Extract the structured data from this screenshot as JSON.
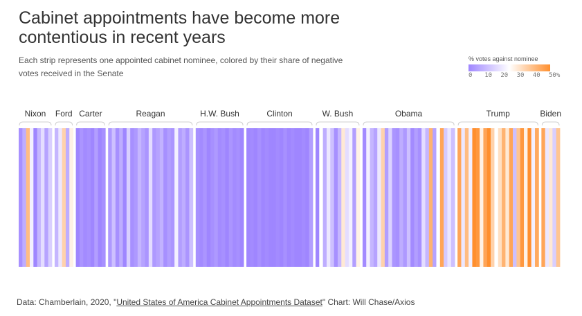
{
  "title": "Cabinet appointments have become more contentious in recent years",
  "subtitle": "Each strip represents one appointed cabinet nominee, colored by their share of negative votes received in the Senate",
  "legend": {
    "title": "% votes against nominee",
    "ticks": [
      "0",
      "10",
      "20",
      "30",
      "40",
      "50%"
    ],
    "colors": {
      "low": "#9f86ff",
      "mid": "#ffffff",
      "high": "#ff8f2e"
    }
  },
  "source": {
    "prefix": "Data: Chamberlain, 2020, \"",
    "link": "United States of America Cabinet Appointments Dataset",
    "suffix": "\" Chart: Will Chase/Axios"
  },
  "chart_data": {
    "type": "heatmap",
    "value_unit": "% votes against nominee",
    "color_domain": [
      0,
      50
    ],
    "administrations": [
      {
        "name": "Nixon",
        "values": [
          2,
          8,
          40,
          22,
          0,
          10,
          18,
          6,
          15
        ]
      },
      {
        "name": "Ford",
        "values": [
          10,
          20,
          35,
          8,
          28
        ]
      },
      {
        "name": "Carter",
        "values": [
          0,
          3,
          1,
          2,
          0,
          5,
          0,
          2
        ]
      },
      {
        "name": "Reagan",
        "values": [
          4,
          12,
          2,
          8,
          0,
          15,
          2,
          4,
          10,
          6,
          3,
          18,
          4,
          6,
          9,
          2,
          5,
          3,
          22,
          5,
          8,
          3,
          12
        ]
      },
      {
        "name": "H.W. Bush",
        "values": [
          2,
          1,
          3,
          0,
          2,
          4,
          1,
          2,
          0,
          3,
          1,
          2,
          0
        ]
      },
      {
        "name": "Clinton",
        "values": [
          0,
          1,
          0,
          2,
          0,
          1,
          0,
          0,
          1,
          0,
          2,
          0,
          1,
          0,
          0,
          1,
          0,
          5
        ]
      },
      {
        "name": "W. Bush",
        "values": [
          0,
          25,
          8,
          20,
          12,
          2,
          10,
          30,
          18,
          22,
          5,
          28
        ]
      },
      {
        "name": "Obama",
        "values": [
          1,
          22,
          10,
          6,
          20,
          35,
          5,
          16,
          3,
          2,
          8,
          4,
          12,
          1,
          5,
          2,
          18,
          10,
          42,
          6,
          25,
          45,
          14,
          20,
          12
        ]
      },
      {
        "name": "Trump",
        "values": [
          45,
          20,
          40,
          22,
          50,
          48,
          28,
          45,
          50,
          35,
          25,
          32,
          42,
          30,
          45,
          12,
          38,
          48,
          28,
          50,
          22,
          44
        ]
      },
      {
        "name": "Biden",
        "values": [
          45,
          20,
          30,
          15,
          38
        ]
      }
    ]
  }
}
